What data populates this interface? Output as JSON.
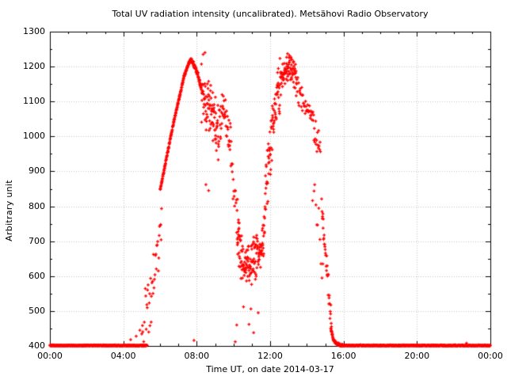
{
  "chart_data": {
    "type": "scatter",
    "title": "Total UV radiation intensity (uncalibrated). Metsähovi Radio Observatory",
    "xlabel": "Time UT, on date 2014-03-17",
    "ylabel": "Arbitrary unit",
    "xlim_hours": [
      0,
      24
    ],
    "ylim": [
      400,
      1300
    ],
    "xticks": [
      {
        "hour": 0,
        "label": "00:00"
      },
      {
        "hour": 4,
        "label": "04:00"
      },
      {
        "hour": 8,
        "label": "08:00"
      },
      {
        "hour": 12,
        "label": "12:00"
      },
      {
        "hour": 16,
        "label": "16:00"
      },
      {
        "hour": 20,
        "label": "20:00"
      },
      {
        "hour": 24,
        "label": "00:00"
      }
    ],
    "yticks": [
      400,
      500,
      600,
      700,
      800,
      900,
      1000,
      1100,
      1200,
      1300
    ],
    "x_minor_tick_hours": 1,
    "y_minor_tick_step": 50,
    "grid": "dotted gray lines at major ticks",
    "legend": "none",
    "point_style": "plus",
    "point_color": "#ff0000",
    "grid_color": "#c4c4c4",
    "axis_color": "#000000",
    "background_color": "#ffffff",
    "summary": "Night baseline flat at 400 (00:00-05:00 and 15:30-24:00). Sparse dawn scatter 05:00-06:00 rising 400-800. Dense smooth rise 06:00-07:40 from ~845 to morning peak ~1220 at 07:40. Noisy decline to ~1030 by 09:00 with highs to ~1240. Midday dip cluster 10:15-11:40 around 630-700 (lows ~440-510). Second rise to afternoon peak ~1230 near 13:00. Noisy decline after 13:30; steep drop 15:00-15:30 back to 400 baseline.",
    "seed": 20140317,
    "envelope_segments": [
      {
        "name": "baseline-night-am",
        "t0": 0.0,
        "t1": 5.3,
        "n": 430,
        "curve": [
          [
            0,
            401
          ],
          [
            5.3,
            401
          ]
        ],
        "spread": 2.2
      },
      {
        "name": "dawn-scatter",
        "t0": 5.0,
        "t1": 6.1,
        "n": 42,
        "curve": [
          [
            5.0,
            420
          ],
          [
            5.5,
            540
          ],
          [
            5.8,
            650
          ],
          [
            6.1,
            790
          ]
        ],
        "spread": 115
      },
      {
        "name": "smooth-rise",
        "t0": 6.0,
        "t1": 7.68,
        "n": 175,
        "curve": [
          [
            6.0,
            845
          ],
          [
            6.7,
            1030
          ],
          [
            7.3,
            1170
          ],
          [
            7.55,
            1208
          ],
          [
            7.68,
            1220
          ]
        ],
        "spread": 5
      },
      {
        "name": "crest-decline",
        "t0": 7.68,
        "t1": 8.25,
        "n": 70,
        "curve": [
          [
            7.68,
            1220
          ],
          [
            7.9,
            1200
          ],
          [
            8.07,
            1176
          ],
          [
            8.25,
            1135
          ]
        ],
        "spread": 9
      },
      {
        "name": "postpeak-cloud",
        "t0": 8.25,
        "t1": 9.2,
        "n": 85,
        "curve": [
          [
            8.25,
            1130
          ],
          [
            8.6,
            1090
          ],
          [
            9.2,
            1030
          ]
        ],
        "spread": 105
      },
      {
        "name": "late-morning-bump",
        "t0": 9.2,
        "t1": 9.85,
        "n": 42,
        "curve": [
          [
            9.2,
            1030
          ],
          [
            9.45,
            1080
          ],
          [
            9.85,
            975
          ]
        ],
        "spread": 70
      },
      {
        "name": "slide-to-dip",
        "t0": 9.85,
        "t1": 10.35,
        "n": 22,
        "curve": [
          [
            9.85,
            950
          ],
          [
            10.1,
            800
          ],
          [
            10.35,
            720
          ]
        ],
        "spread": 70
      },
      {
        "name": "midday-dip",
        "t0": 10.2,
        "t1": 11.7,
        "n": 145,
        "curve": [
          [
            10.2,
            700
          ],
          [
            10.5,
            645
          ],
          [
            10.9,
            630
          ],
          [
            11.3,
            660
          ],
          [
            11.7,
            725
          ]
        ],
        "spread": 75
      },
      {
        "name": "rise-second",
        "t0": 11.7,
        "t1": 12.55,
        "n": 78,
        "curve": [
          [
            11.7,
            800
          ],
          [
            12.0,
            950
          ],
          [
            12.2,
            1040
          ],
          [
            12.4,
            1110
          ],
          [
            12.55,
            1150
          ]
        ],
        "spread": 100
      },
      {
        "name": "second-peak",
        "t0": 12.55,
        "t1": 13.45,
        "n": 78,
        "curve": [
          [
            12.55,
            1150
          ],
          [
            12.8,
            1190
          ],
          [
            13.0,
            1200
          ],
          [
            13.2,
            1190
          ],
          [
            13.45,
            1150
          ]
        ],
        "spread": 50
      },
      {
        "name": "afternoon-decline",
        "t0": 13.45,
        "t1": 14.75,
        "n": 56,
        "curve": [
          [
            13.45,
            1140
          ],
          [
            13.8,
            1100
          ],
          [
            14.2,
            1050
          ],
          [
            14.55,
            1000
          ],
          [
            14.75,
            950
          ]
        ],
        "spread": 55
      },
      {
        "name": "low-straggler-column",
        "t0": 14.3,
        "t1": 14.95,
        "n": 12,
        "curve": [
          [
            14.3,
            850
          ],
          [
            14.95,
            620
          ]
        ],
        "spread": 100
      },
      {
        "name": "dusk-fall",
        "t0": 14.8,
        "t1": 15.35,
        "n": 34,
        "curve": [
          [
            14.8,
            800
          ],
          [
            15.05,
            650
          ],
          [
            15.25,
            520
          ],
          [
            15.35,
            460
          ]
        ],
        "spread": 55
      },
      {
        "name": "dusk-tail",
        "t0": 15.3,
        "t1": 15.95,
        "n": 70,
        "curve": [
          [
            15.3,
            450
          ],
          [
            15.45,
            418
          ],
          [
            15.6,
            407
          ],
          [
            15.95,
            402
          ]
        ],
        "spread": 4.5
      },
      {
        "name": "baseline-night-pm",
        "t0": 15.8,
        "t1": 24.0,
        "n": 660,
        "curve": [
          [
            15.8,
            401
          ],
          [
            24,
            401
          ]
        ],
        "spread": 2.2
      }
    ],
    "outlier_points": [
      [
        4.4,
        418
      ],
      [
        4.7,
        428
      ],
      [
        4.9,
        445
      ],
      [
        7.85,
        416
      ],
      [
        8.35,
        1235
      ],
      [
        8.45,
        1240
      ],
      [
        8.5,
        862
      ],
      [
        8.65,
        845
      ],
      [
        10.1,
        412
      ],
      [
        10.18,
        460
      ],
      [
        10.55,
        512
      ],
      [
        10.85,
        462
      ],
      [
        10.95,
        506
      ],
      [
        11.1,
        438
      ],
      [
        11.35,
        495
      ],
      [
        12.95,
        1237
      ],
      [
        13.05,
        1232
      ],
      [
        22.7,
        408
      ]
    ]
  }
}
